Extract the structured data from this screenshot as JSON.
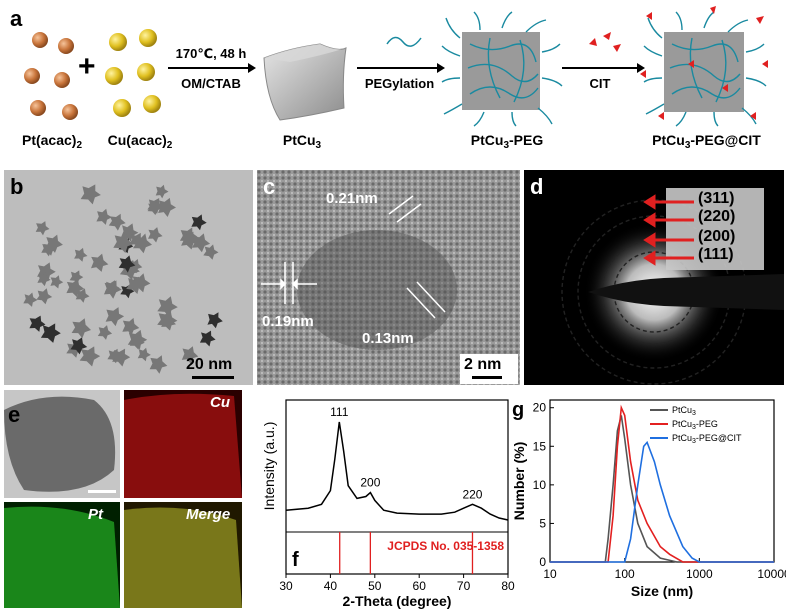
{
  "panel_a": {
    "label": "a",
    "reactant1": "Pt(acac)",
    "reactant1_sub": "2",
    "plus": "+",
    "reactant2": "Cu(acac)",
    "reactant2_sub": "2",
    "cond_top": "170℃, 48 h",
    "cond_bottom": "OM/CTAB",
    "product1": "PtCu",
    "product1_sub": "3",
    "step2": "PEGylation",
    "product2": "PtCu",
    "product2_sub": "3",
    "product2_suffix": "-PEG",
    "step3": "CIT",
    "product3": "PtCu",
    "product3_sub": "3",
    "product3_suffix": "-PEG@CIT"
  },
  "panel_b": {
    "label": "b",
    "scale": "20 nm"
  },
  "panel_c": {
    "label": "c",
    "scale": "2 nm",
    "d1": "0.21nm",
    "d2": "0.19nm",
    "d3": "0.13nm"
  },
  "panel_d": {
    "label": "d",
    "rings": [
      "(311)",
      "(220)",
      "(200)",
      "(111)"
    ]
  },
  "panel_e": {
    "label": "e",
    "cu": "Cu",
    "pt": "Pt",
    "merge": "Merge"
  },
  "panel_f": {
    "label": "f",
    "ylabel": "Intensity (a.u.)",
    "xlabel": "2-Theta (degree)",
    "ref_label": "JCPDS No. 035-1358",
    "peaks": [
      "111",
      "200",
      "220"
    ],
    "chart_data": {
      "type": "line",
      "xlabel": "2-Theta (degree)",
      "ylabel": "Intensity (a.u.)",
      "xlim": [
        30,
        80
      ],
      "x_ticks": [
        30,
        40,
        50,
        60,
        70,
        80
      ],
      "series": [
        {
          "x": [
            30,
            35,
            38,
            40,
            41,
            42,
            43,
            44,
            46,
            48,
            49,
            50,
            52,
            55,
            60,
            65,
            68,
            70,
            72,
            74,
            76,
            78,
            80
          ],
          "values": [
            0.1,
            0.12,
            0.16,
            0.3,
            0.62,
            1.0,
            0.7,
            0.35,
            0.22,
            0.24,
            0.28,
            0.2,
            0.1,
            0.07,
            0.06,
            0.06,
            0.08,
            0.12,
            0.16,
            0.12,
            0.06,
            0.02,
            0.0
          ]
        }
      ],
      "reference_lines": [
        42.1,
        49.0,
        72.0
      ]
    }
  },
  "panel_g": {
    "label": "g",
    "ylabel": "Number (%)",
    "xlabel": "Size (nm)",
    "legend": [
      {
        "name": "PtCu",
        "sub": "3",
        "suffix": "",
        "color": "#555555"
      },
      {
        "name": "PtCu",
        "sub": "3",
        "suffix": "-PEG",
        "color": "#e32020"
      },
      {
        "name": "PtCu",
        "sub": "3",
        "suffix": "-PEG@CIT",
        "color": "#1f6fe0"
      }
    ],
    "chart_data": {
      "type": "line",
      "xlabel": "Size (nm)",
      "ylabel": "Number (%)",
      "x_scale": "log",
      "xlim": [
        10,
        10000
      ],
      "ylim": [
        0,
        21
      ],
      "x_ticks": [
        "10",
        "100",
        "1000",
        "10000"
      ],
      "y_ticks": [
        0,
        5,
        10,
        15,
        20
      ],
      "series": [
        {
          "name": "PtCu3",
          "x": [
            10,
            55,
            60,
            70,
            80,
            90,
            100,
            120,
            150,
            200,
            300,
            500,
            10000
          ],
          "values": [
            0,
            0,
            3,
            10,
            17,
            19,
            16,
            10,
            5,
            2,
            0.5,
            0,
            0
          ]
        },
        {
          "name": "PtCu3-PEG",
          "x": [
            10,
            60,
            70,
            80,
            90,
            100,
            120,
            150,
            200,
            300,
            400,
            600,
            10000
          ],
          "values": [
            0,
            0,
            6,
            15,
            20,
            19,
            13,
            8,
            5,
            2,
            1,
            0,
            0
          ]
        },
        {
          "name": "PtCu3-PEG@CIT",
          "x": [
            10,
            100,
            120,
            150,
            180,
            200,
            250,
            300,
            400,
            600,
            800,
            1000,
            10000
          ],
          "values": [
            0,
            0,
            3,
            10,
            15,
            15.5,
            13,
            10,
            6,
            2,
            0.5,
            0,
            0
          ]
        }
      ]
    }
  }
}
